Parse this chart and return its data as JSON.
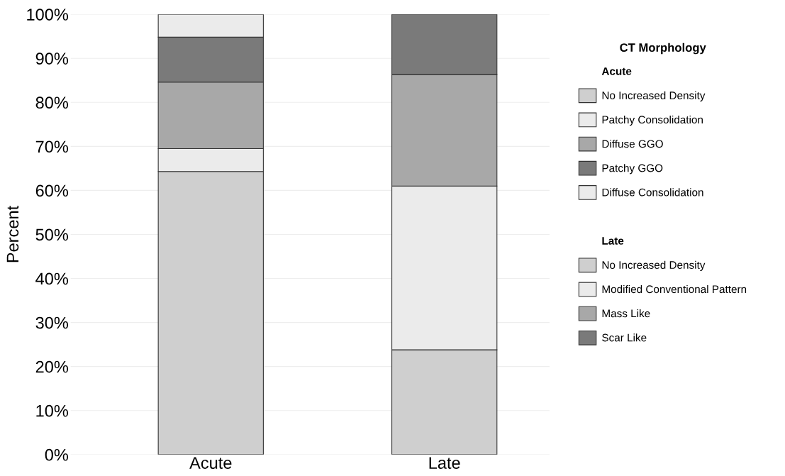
{
  "chart_data": {
    "type": "bar",
    "stacked": true,
    "ylabel": "Percent",
    "legend_title": "CT Morphology",
    "legend": "right",
    "grid": "y",
    "categories": [
      "Acute",
      "Late"
    ],
    "ylim": [
      0,
      100
    ],
    "yticks": [
      {
        "value": 0,
        "label": "0%"
      },
      {
        "value": 10,
        "label": "10%"
      },
      {
        "value": 20,
        "label": "20%"
      },
      {
        "value": 30,
        "label": "30%"
      },
      {
        "value": 40,
        "label": "40%"
      },
      {
        "value": 50,
        "label": "50%"
      },
      {
        "value": 60,
        "label": "60%"
      },
      {
        "value": 70,
        "label": "70%"
      },
      {
        "value": 80,
        "label": "80%"
      },
      {
        "value": 90,
        "label": "90%"
      },
      {
        "value": 100,
        "label": "100%"
      }
    ],
    "annotations": [
      "Acute",
      "Late"
    ],
    "series": [
      {
        "name": "No Increased Density",
        "color": "#cfcfcf",
        "values": [
          64.3,
          null
        ]
      },
      {
        "name": "Patchy Consolidation",
        "color": "#ebebeb",
        "values": [
          5.2,
          null
        ]
      },
      {
        "name": "Diffuse GGO",
        "color": "#a8a8a8",
        "values": [
          15.1,
          null
        ]
      },
      {
        "name": "Patchy GGO",
        "color": "#7a7a7a",
        "values": [
          10.2,
          null
        ]
      },
      {
        "name": "Diffuse Consolidation",
        "color": "#ebebeb",
        "values": [
          5.2,
          null
        ]
      },
      {
        "name": "No Increased Density",
        "color": "#cfcfcf",
        "values": [
          null,
          23.8
        ]
      },
      {
        "name": "Modified Conventional Pattern",
        "color": "#ebebeb",
        "values": [
          null,
          37.2
        ]
      },
      {
        "name": "Mass Like",
        "color": "#a8a8a8",
        "values": [
          null,
          25.3
        ]
      },
      {
        "name": "Scar Like",
        "color": "#7a7a7a",
        "values": [
          null,
          13.7
        ]
      }
    ]
  }
}
